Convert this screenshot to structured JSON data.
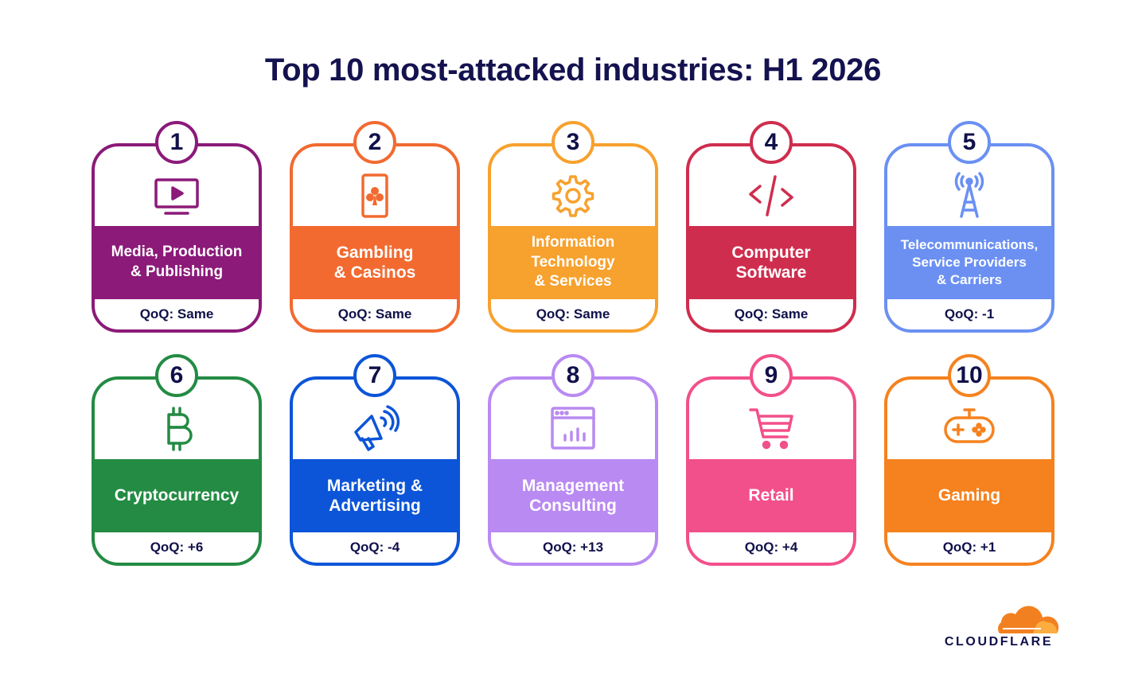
{
  "title": "Top 10 most-attacked industries: H1 2026",
  "industries": [
    {
      "rank": "1",
      "name": "Media, Production\n& Publishing",
      "qoq": "QoQ: Same",
      "color": "#8b1a79",
      "icon": "tv-play-icon"
    },
    {
      "rank": "2",
      "name": "Gambling\n& Casinos",
      "qoq": "QoQ: Same",
      "color": "#f26a30",
      "icon": "playing-card-icon"
    },
    {
      "rank": "3",
      "name": "Information\nTechnology\n& Services",
      "qoq": "QoQ: Same",
      "color": "#f7a12e",
      "icon": "gear-icon"
    },
    {
      "rank": "4",
      "name": "Computer\nSoftware",
      "qoq": "QoQ: Same",
      "color": "#cf2d4e",
      "icon": "code-icon"
    },
    {
      "rank": "5",
      "name": "Telecommunications,\nService Providers\n& Carriers",
      "qoq": "QoQ: -1",
      "color": "#6b90f2",
      "icon": "cell-tower-icon"
    },
    {
      "rank": "6",
      "name": "Cryptocurrency",
      "qoq": "QoQ: +6",
      "color": "#238b43",
      "icon": "bitcoin-icon"
    },
    {
      "rank": "7",
      "name": "Marketing &\nAdvertising",
      "qoq": "QoQ: -4",
      "color": "#0c55d8",
      "icon": "megaphone-icon"
    },
    {
      "rank": "8",
      "name": "Management\nConsulting",
      "qoq": "QoQ: +13",
      "color": "#b98af2",
      "icon": "analytics-window-icon"
    },
    {
      "rank": "9",
      "name": "Retail",
      "qoq": "QoQ: +4",
      "color": "#f2508a",
      "icon": "shopping-cart-icon"
    },
    {
      "rank": "10",
      "name": "Gaming",
      "qoq": "QoQ: +1",
      "color": "#f5821f",
      "icon": "gamepad-icon"
    }
  ],
  "logo": {
    "text": "CLOUDFLARE",
    "icon": "cloudflare-cloud-icon",
    "color": "#f38020"
  }
}
